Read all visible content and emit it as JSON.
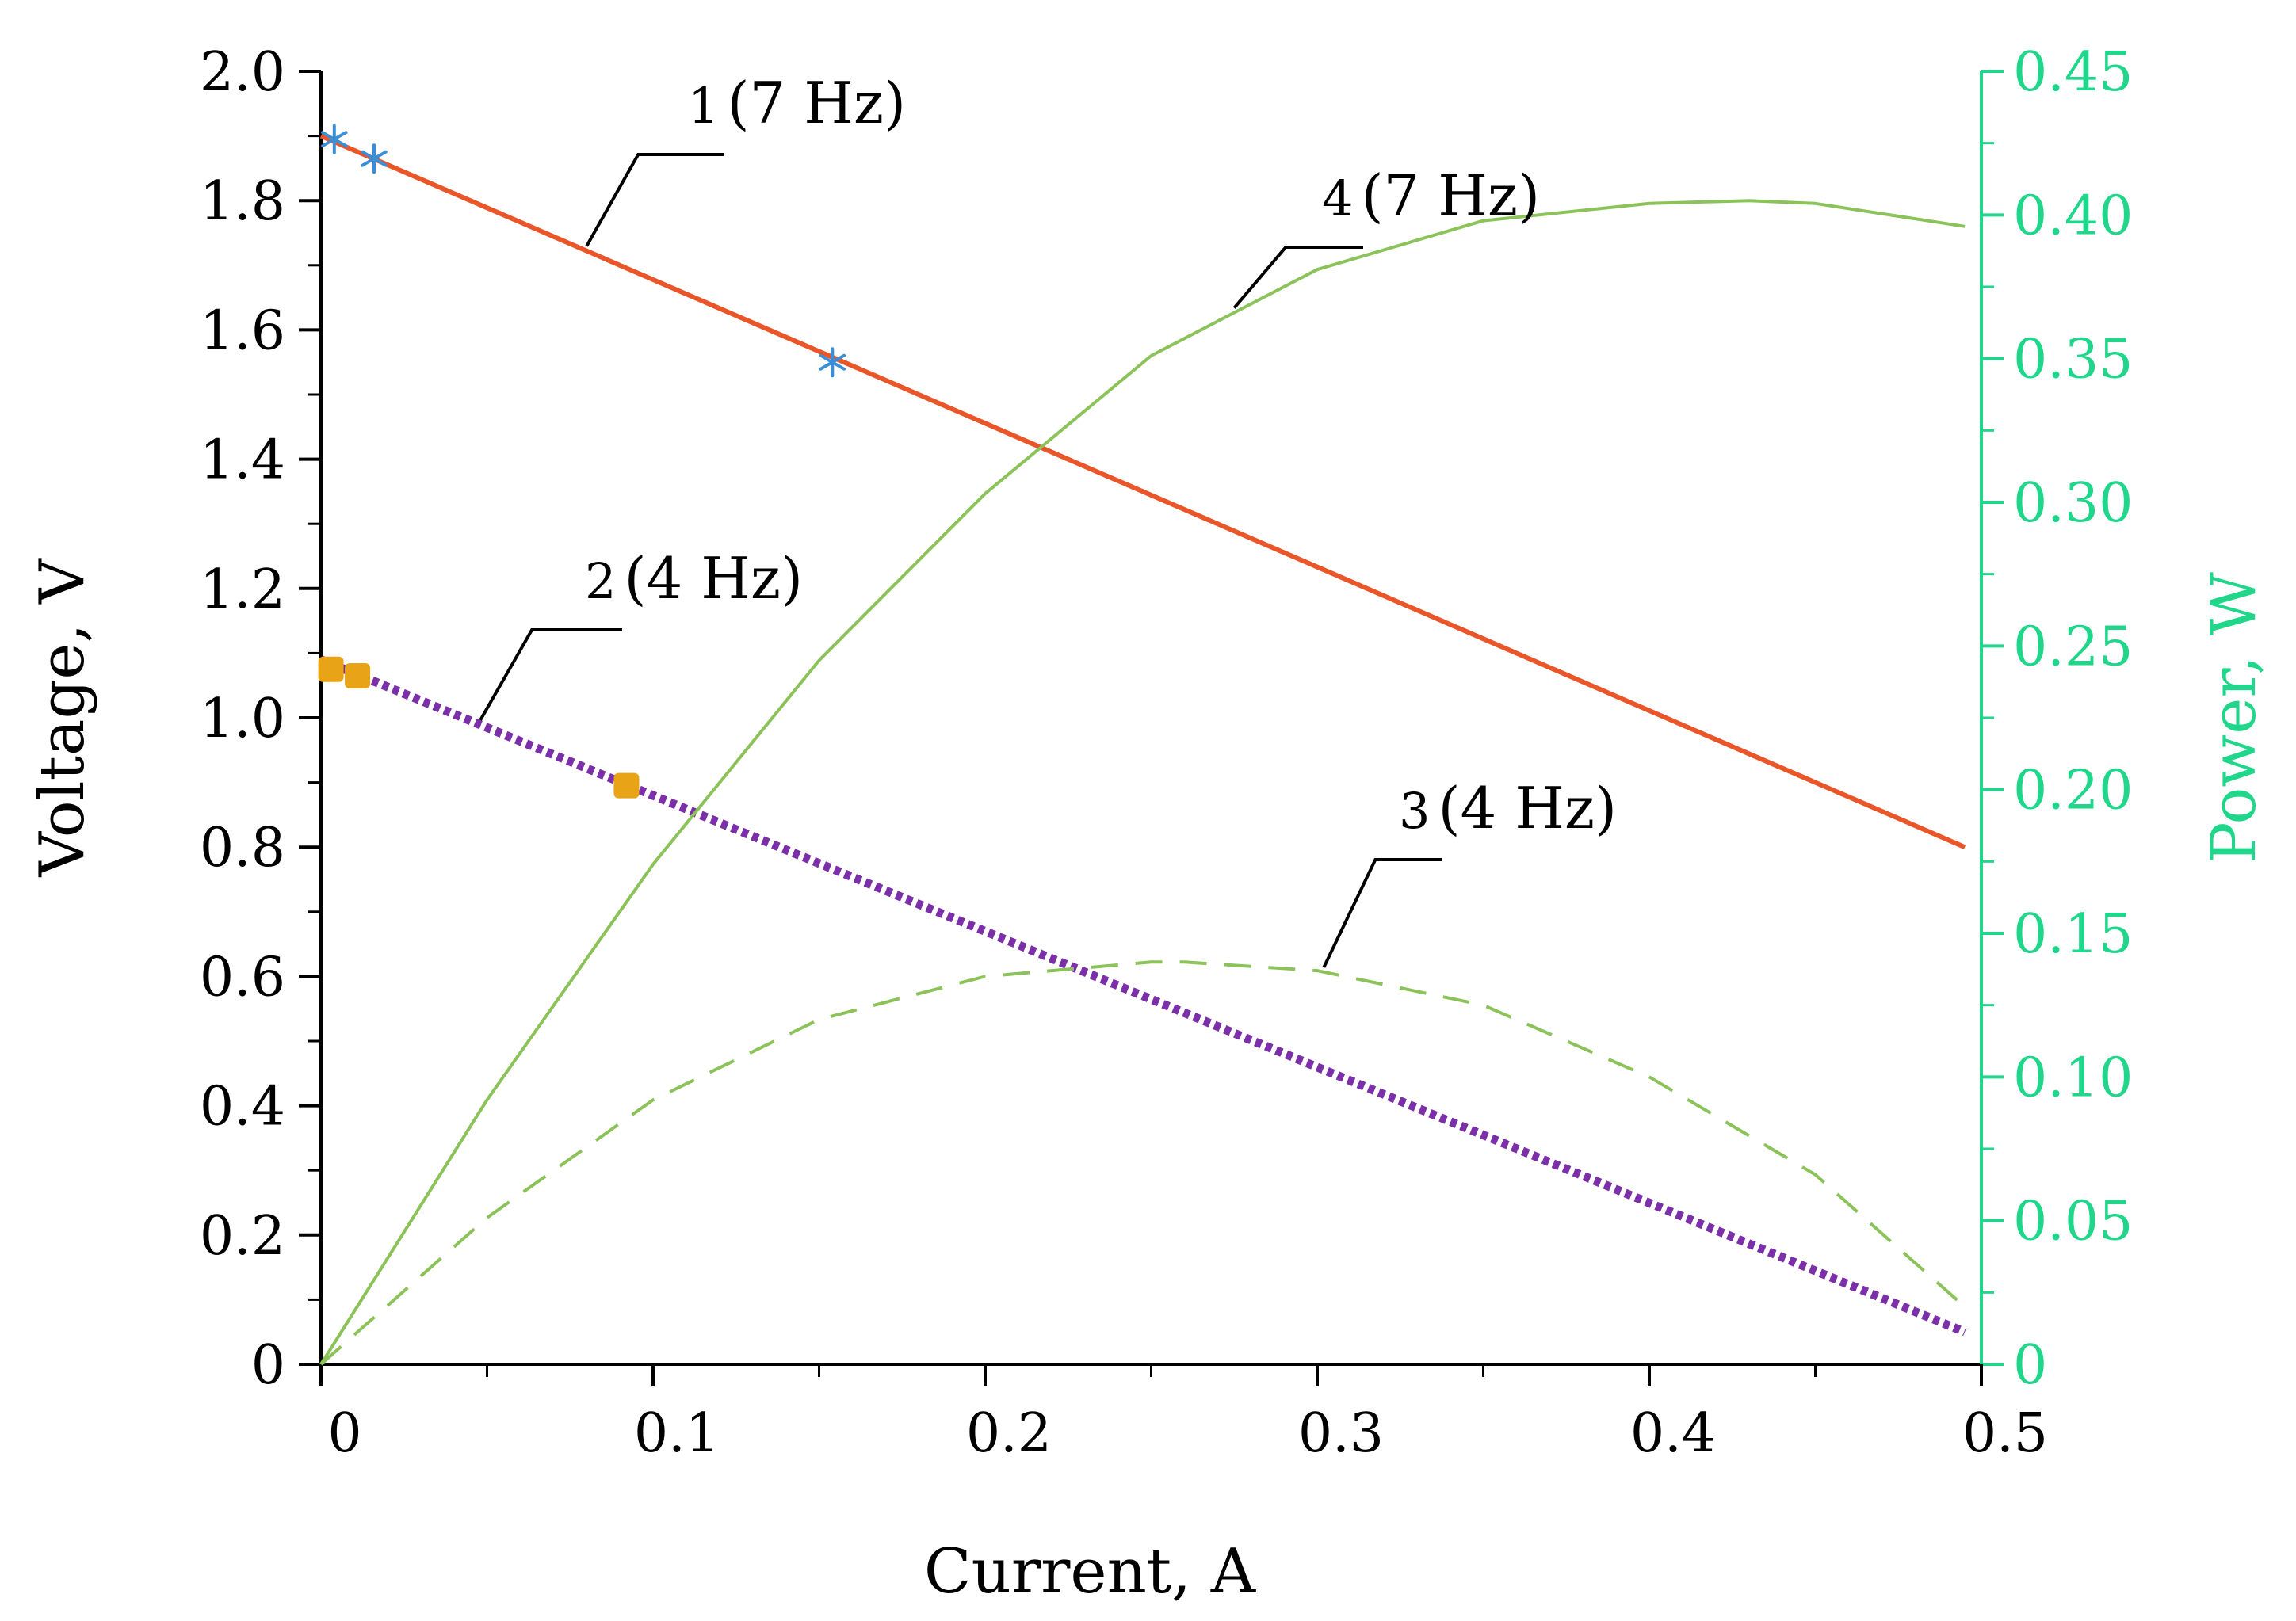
{
  "chart_data": {
    "type": "line",
    "x_axis": {
      "label": "Current, A",
      "range": [
        0,
        0.5
      ],
      "ticks": [
        0,
        0.1,
        0.2,
        0.3,
        0.4,
        0.5
      ],
      "tick_labels": [
        "0",
        "0.1",
        "0.2",
        "0.3",
        "0.4",
        "0.5"
      ]
    },
    "y_axis_left": {
      "label": "Voltage, V",
      "range": [
        0,
        2.0
      ],
      "ticks": [
        0,
        0.2,
        0.4,
        0.6,
        0.8,
        1.0,
        1.2,
        1.4,
        1.6,
        1.8,
        2.0
      ],
      "tick_labels": [
        "0",
        "0.2",
        "0.4",
        "0.6",
        "0.8",
        "1.0",
        "1.2",
        "1.4",
        "1.6",
        "1.8",
        "2.0"
      ]
    },
    "y_axis_right": {
      "label": "Power, W",
      "color": "#1fd68a",
      "range": [
        0,
        0.45
      ],
      "ticks": [
        0,
        0.05,
        0.1,
        0.15,
        0.2,
        0.25,
        0.3,
        0.35,
        0.4,
        0.45
      ],
      "tick_labels": [
        "0",
        "0.05",
        "0.10",
        "0.15",
        "0.20",
        "0.25",
        "0.30",
        "0.35",
        "0.40",
        "0.45"
      ]
    },
    "series": [
      {
        "id": "1",
        "name_number": "1",
        "name_freq": "(7 Hz)",
        "axis": "left",
        "style": "solid",
        "color": "#e8562a",
        "x": [
          0,
          0.495
        ],
        "y": [
          1.9,
          0.8
        ],
        "markers": {
          "symbol": "asterisk",
          "color": "#3b8fd6",
          "x": [
            0.004,
            0.016,
            0.154
          ],
          "y": [
            1.895,
            1.865,
            1.55
          ]
        }
      },
      {
        "id": "2",
        "name_number": "2",
        "name_freq": "(4 Hz)",
        "axis": "left",
        "style": "dotted",
        "color": "#7b2fa8",
        "x": [
          0,
          0.495
        ],
        "y": [
          1.09,
          0.05
        ],
        "markers": {
          "symbol": "square",
          "color": "#e8a317",
          "x": [
            0.003,
            0.011,
            0.092
          ],
          "y": [
            1.075,
            1.065,
            0.895
          ]
        }
      },
      {
        "id": "3",
        "name_number": "3",
        "name_freq": "(4 Hz)",
        "axis": "right",
        "style": "dashed",
        "color": "#8cc25a",
        "x": [
          0,
          0.05,
          0.1,
          0.15,
          0.2,
          0.25,
          0.26,
          0.3,
          0.35,
          0.4,
          0.45,
          0.495
        ],
        "y": [
          0,
          0.051,
          0.092,
          0.12,
          0.135,
          0.14,
          0.14,
          0.137,
          0.125,
          0.1,
          0.066,
          0.02
        ]
      },
      {
        "id": "4",
        "name_number": "4",
        "name_freq": "(7 Hz)",
        "axis": "right",
        "style": "solid",
        "color": "#8cc25a",
        "x": [
          0,
          0.05,
          0.1,
          0.15,
          0.2,
          0.25,
          0.3,
          0.35,
          0.4,
          0.43,
          0.45,
          0.495
        ],
        "y": [
          0,
          0.092,
          0.174,
          0.245,
          0.303,
          0.351,
          0.381,
          0.398,
          0.404,
          0.405,
          0.404,
          0.396
        ]
      }
    ]
  }
}
